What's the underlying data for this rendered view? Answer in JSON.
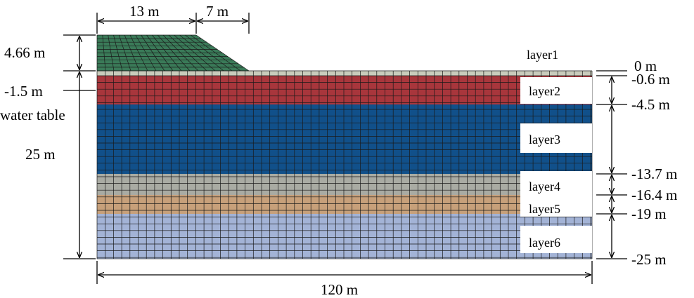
{
  "layers": [
    {
      "id": "embankment",
      "color": "#3a7a58"
    },
    {
      "name": "layer1",
      "color": "#c9ccbc",
      "top_m": "0 m",
      "bottom_m": "-0.6 m"
    },
    {
      "name": "layer2",
      "color": "#a8363c",
      "bottom_m": "-4.5 m"
    },
    {
      "name": "layer3",
      "color": "#11508a",
      "bottom_m": "-13.7 m"
    },
    {
      "name": "layer4",
      "color": "#a9aba3",
      "bottom_m": "-16.4 m"
    },
    {
      "name": "layer5",
      "color": "#c7a07a",
      "bottom_m": "-19 m"
    },
    {
      "name": "layer6",
      "color": "#a3b3d6",
      "bottom_m": "-25 m"
    }
  ],
  "dimensions": {
    "embankment_top_width": "13 m",
    "embankment_slope_width": "7 m",
    "embankment_height": "4.66 m",
    "water_table_depth": "-1.5 m",
    "water_table_label": "water table",
    "model_depth": "25 m",
    "model_width": "120 m"
  }
}
